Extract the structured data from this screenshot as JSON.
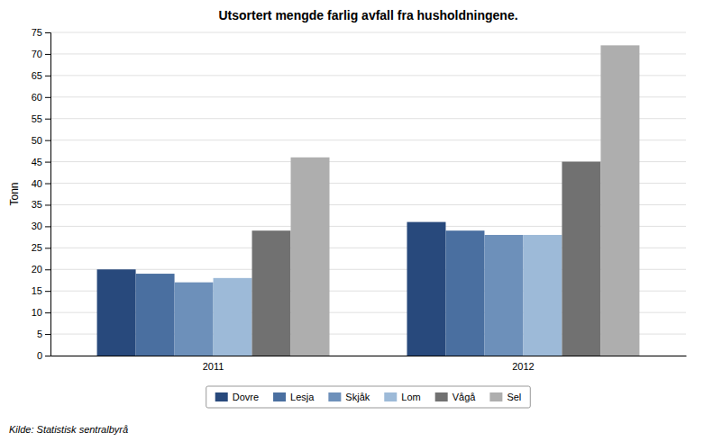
{
  "chart_data": {
    "type": "bar",
    "title": "Utsortert mengde farlig avfall fra husholdningene.",
    "ylabel": "Tonn",
    "categories": [
      "2011",
      "2012"
    ],
    "series": [
      {
        "name": "Dovre",
        "color": "#28497C",
        "values": [
          20,
          31
        ]
      },
      {
        "name": "Lesja",
        "color": "#4A6FA0",
        "values": [
          19,
          29
        ]
      },
      {
        "name": "Skjåk",
        "color": "#6D90BA",
        "values": [
          17,
          28
        ]
      },
      {
        "name": "Lom",
        "color": "#9DBAD8",
        "values": [
          18,
          28
        ]
      },
      {
        "name": "Vågå",
        "color": "#717171",
        "values": [
          29,
          45
        ]
      },
      {
        "name": "Sel",
        "color": "#AEAEAE",
        "values": [
          46,
          72
        ]
      }
    ],
    "ylim": [
      0,
      75
    ],
    "yticks": [
      0,
      5,
      10,
      15,
      20,
      25,
      30,
      35,
      40,
      45,
      50,
      55,
      60,
      65,
      70,
      75
    ],
    "grid": true,
    "legend": "bottom",
    "source": "Kilde: Statistisk sentralbyrå"
  }
}
